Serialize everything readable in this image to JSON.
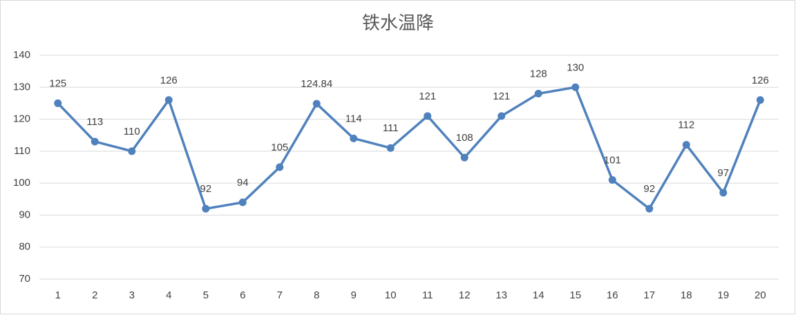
{
  "chart_data": {
    "type": "line",
    "title": "铁水温降",
    "categories": [
      "1",
      "2",
      "3",
      "4",
      "5",
      "6",
      "7",
      "8",
      "9",
      "10",
      "11",
      "12",
      "13",
      "14",
      "15",
      "16",
      "17",
      "18",
      "19",
      "20"
    ],
    "values": [
      125,
      113,
      110,
      126,
      92,
      94,
      105,
      124.84,
      114,
      111,
      121,
      108,
      121,
      128,
      130,
      101,
      92,
      112,
      97,
      126
    ],
    "color": "#4f81bd",
    "ylim": [
      70,
      140
    ],
    "yticks": [
      70,
      80,
      90,
      100,
      110,
      120,
      130,
      140
    ],
    "grid": true
  }
}
